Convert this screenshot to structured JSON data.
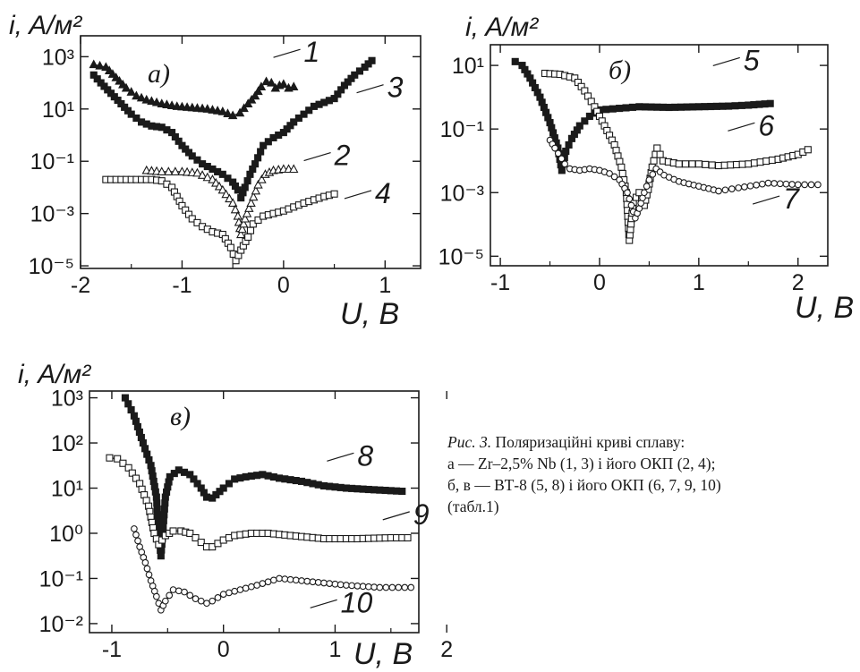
{
  "caption": {
    "figure_label": "Рис. 3.",
    "title": "Поляризаційні криві сплаву:",
    "line_a": "а — Zr–2,5% Nb (1, 3) і його ОКП (2, 4);",
    "line_b": "б, в — ВТ-8 (5, 8) і його ОКП (6, 7, 9, 10)",
    "line_c": "(табл.1)"
  },
  "chart_data": [
    {
      "type": "line",
      "panel": "а)",
      "ylabel": "i, A/м²",
      "xlabel": "U, B",
      "x_ticks": [
        "-2",
        "-1",
        "0",
        "1"
      ],
      "y_ticks": [
        "10³",
        "10¹",
        "10⁻¹",
        "10⁻³",
        "10⁻⁵"
      ],
      "xlim": [
        -2.0,
        1.35
      ],
      "ylim_log10": [
        -5.1,
        3.8
      ],
      "yscale": "log",
      "series": [
        {
          "name": "1",
          "marker": "triangle-filled",
          "points": [
            [
              -1.87,
              2.7
            ],
            [
              -1.75,
              2.6
            ],
            [
              -1.65,
              2.2
            ],
            [
              -1.55,
              1.8
            ],
            [
              -1.45,
              1.5
            ],
            [
              -1.35,
              1.35
            ],
            [
              -1.2,
              1.2
            ],
            [
              -1.05,
              1.1
            ],
            [
              -0.9,
              1.05
            ],
            [
              -0.75,
              1.0
            ],
            [
              -0.6,
              0.9
            ],
            [
              -0.5,
              0.75
            ],
            [
              -0.43,
              0.85
            ],
            [
              -0.35,
              1.2
            ],
            [
              -0.28,
              1.5
            ],
            [
              -0.22,
              1.85
            ],
            [
              -0.17,
              2.05
            ],
            [
              -0.12,
              2.0
            ],
            [
              -0.08,
              1.8
            ],
            [
              -0.04,
              1.9
            ],
            [
              0.0,
              1.95
            ],
            [
              0.05,
              1.8
            ],
            [
              0.1,
              1.85
            ]
          ]
        },
        {
          "name": "3",
          "marker": "square-filled",
          "points": [
            [
              -1.87,
              2.3
            ],
            [
              -1.8,
              2.0
            ],
            [
              -1.7,
              1.6
            ],
            [
              -1.6,
              1.2
            ],
            [
              -1.5,
              0.8
            ],
            [
              -1.4,
              0.5
            ],
            [
              -1.3,
              0.35
            ],
            [
              -1.2,
              0.3
            ],
            [
              -1.1,
              0.1
            ],
            [
              -1.0,
              -0.4
            ],
            [
              -0.9,
              -0.8
            ],
            [
              -0.8,
              -1.1
            ],
            [
              -0.7,
              -1.3
            ],
            [
              -0.6,
              -1.5
            ],
            [
              -0.5,
              -1.8
            ],
            [
              -0.45,
              -2.1
            ],
            [
              -0.42,
              -2.4
            ],
            [
              -0.38,
              -2.0
            ],
            [
              -0.33,
              -1.5
            ],
            [
              -0.28,
              -1.1
            ],
            [
              -0.2,
              -0.4
            ],
            [
              -0.1,
              -0.1
            ],
            [
              0.0,
              0.1
            ],
            [
              0.1,
              0.5
            ],
            [
              0.2,
              0.8
            ],
            [
              0.3,
              1.1
            ],
            [
              0.5,
              1.4
            ],
            [
              0.6,
              1.9
            ],
            [
              0.7,
              2.3
            ],
            [
              0.8,
              2.6
            ],
            [
              0.87,
              2.85
            ]
          ]
        },
        {
          "name": "2",
          "marker": "triangle-open",
          "points": [
            [
              -1.35,
              -1.35
            ],
            [
              -1.2,
              -1.4
            ],
            [
              -1.0,
              -1.4
            ],
            [
              -0.85,
              -1.45
            ],
            [
              -0.7,
              -1.7
            ],
            [
              -0.6,
              -2.1
            ],
            [
              -0.5,
              -2.6
            ],
            [
              -0.45,
              -3.1
            ],
            [
              -0.42,
              -3.8
            ],
            [
              -0.38,
              -3.2
            ],
            [
              -0.32,
              -2.6
            ],
            [
              -0.25,
              -1.9
            ],
            [
              -0.18,
              -1.5
            ],
            [
              -0.1,
              -1.35
            ],
            [
              0.0,
              -1.3
            ],
            [
              0.1,
              -1.3
            ]
          ]
        },
        {
          "name": "4",
          "marker": "square-open",
          "points": [
            [
              -1.75,
              -1.7
            ],
            [
              -1.6,
              -1.7
            ],
            [
              -1.45,
              -1.7
            ],
            [
              -1.3,
              -1.7
            ],
            [
              -1.2,
              -1.75
            ],
            [
              -1.1,
              -2.0
            ],
            [
              -1.0,
              -2.7
            ],
            [
              -0.9,
              -3.2
            ],
            [
              -0.8,
              -3.5
            ],
            [
              -0.7,
              -3.7
            ],
            [
              -0.6,
              -3.8
            ],
            [
              -0.52,
              -4.3
            ],
            [
              -0.47,
              -4.8
            ],
            [
              -0.42,
              -4.4
            ],
            [
              -0.35,
              -3.9
            ],
            [
              -0.3,
              -3.4
            ],
            [
              -0.2,
              -3.1
            ],
            [
              0.0,
              -2.9
            ],
            [
              0.2,
              -2.6
            ],
            [
              0.4,
              -2.35
            ],
            [
              0.5,
              -2.25
            ]
          ]
        }
      ],
      "labels": [
        {
          "text": "1",
          "x": 0.2,
          "y": 2.8
        },
        {
          "text": "3",
          "x": 1.02,
          "y": 1.45
        },
        {
          "text": "2",
          "x": 0.5,
          "y": -1.15
        },
        {
          "text": "4",
          "x": 0.9,
          "y": -2.6
        }
      ]
    },
    {
      "type": "line",
      "panel": "б)",
      "ylabel": "i, A/м²",
      "xlabel": "U, B",
      "x_ticks": [
        "-1",
        "0",
        "1",
        "2"
      ],
      "y_ticks": [
        "10¹",
        "10⁻¹",
        "10⁻³",
        "10⁻⁵"
      ],
      "xlim": [
        -1.1,
        2.3
      ],
      "ylim_log10": [
        -5.3,
        1.65
      ],
      "yscale": "log",
      "series": [
        {
          "name": "5",
          "marker": "square-filled",
          "points": [
            [
              -0.85,
              1.12
            ],
            [
              -0.78,
              1.0
            ],
            [
              -0.7,
              0.6
            ],
            [
              -0.6,
              0.0
            ],
            [
              -0.5,
              -0.8
            ],
            [
              -0.42,
              -1.6
            ],
            [
              -0.38,
              -2.3
            ],
            [
              -0.34,
              -1.7
            ],
            [
              -0.28,
              -1.3
            ],
            [
              -0.2,
              -0.9
            ],
            [
              -0.1,
              -0.6
            ],
            [
              0.0,
              -0.4
            ],
            [
              0.2,
              -0.35
            ],
            [
              0.4,
              -0.3
            ],
            [
              0.7,
              -0.32
            ],
            [
              1.0,
              -0.3
            ],
            [
              1.3,
              -0.28
            ],
            [
              1.5,
              -0.25
            ],
            [
              1.72,
              -0.2
            ]
          ]
        },
        {
          "name": "6",
          "marker": "square-open",
          "points": [
            [
              -0.55,
              0.75
            ],
            [
              -0.4,
              0.72
            ],
            [
              -0.25,
              0.6
            ],
            [
              -0.15,
              0.2
            ],
            [
              -0.05,
              -0.3
            ],
            [
              0.05,
              -0.9
            ],
            [
              0.15,
              -1.5
            ],
            [
              0.22,
              -2.2
            ],
            [
              0.27,
              -3.0
            ],
            [
              0.3,
              -4.5
            ],
            [
              0.34,
              -3.3
            ],
            [
              0.4,
              -3.0
            ],
            [
              0.45,
              -3.4
            ],
            [
              0.49,
              -2.9
            ],
            [
              0.53,
              -2.2
            ],
            [
              0.58,
              -1.6
            ],
            [
              0.64,
              -2.0
            ],
            [
              0.8,
              -2.1
            ],
            [
              1.0,
              -2.1
            ],
            [
              1.2,
              -2.15
            ],
            [
              1.5,
              -2.1
            ],
            [
              1.8,
              -1.95
            ],
            [
              2.0,
              -1.8
            ],
            [
              2.1,
              -1.65
            ]
          ]
        },
        {
          "name": "7",
          "marker": "circle-open",
          "points": [
            [
              -0.5,
              -1.35
            ],
            [
              -0.45,
              -1.6
            ],
            [
              -0.35,
              -2.1
            ],
            [
              -0.3,
              -2.25
            ],
            [
              -0.2,
              -2.3
            ],
            [
              -0.1,
              -2.25
            ],
            [
              0.0,
              -2.3
            ],
            [
              0.1,
              -2.4
            ],
            [
              0.2,
              -2.6
            ],
            [
              0.28,
              -3.0
            ],
            [
              0.32,
              -3.4
            ],
            [
              0.36,
              -3.8
            ],
            [
              0.4,
              -3.5
            ],
            [
              0.45,
              -3.0
            ],
            [
              0.5,
              -2.6
            ],
            [
              0.57,
              -2.25
            ],
            [
              0.65,
              -2.45
            ],
            [
              0.8,
              -2.65
            ],
            [
              1.0,
              -2.8
            ],
            [
              1.2,
              -2.95
            ],
            [
              1.4,
              -2.85
            ],
            [
              1.7,
              -2.7
            ],
            [
              2.0,
              -2.75
            ],
            [
              2.2,
              -2.75
            ]
          ]
        }
      ],
      "labels": [
        {
          "text": "5",
          "x": 1.45,
          "y": 0.85
        },
        {
          "text": "6",
          "x": 1.6,
          "y": -1.2
        },
        {
          "text": "7",
          "x": 1.85,
          "y": -3.5
        }
      ]
    },
    {
      "type": "line",
      "panel": "в)",
      "ylabel": "i, A/м²",
      "xlabel": "U, B",
      "x_ticks": [
        "-1",
        "0",
        "1",
        "2"
      ],
      "y_ticks": [
        "10³",
        "10²",
        "10¹",
        "10⁰",
        "10⁻¹",
        "10⁻²"
      ],
      "xlim": [
        -1.2,
        1.75
      ],
      "ylim_log10": [
        -2.2,
        3.15
      ],
      "yscale": "log",
      "series": [
        {
          "name": "8",
          "marker": "square-filled",
          "points": [
            [
              -0.88,
              3.0
            ],
            [
              -0.8,
              2.6
            ],
            [
              -0.72,
              2.0
            ],
            [
              -0.65,
              1.5
            ],
            [
              -0.6,
              0.8
            ],
            [
              -0.58,
              0.0
            ],
            [
              -0.56,
              -0.5
            ],
            [
              -0.52,
              0.8
            ],
            [
              -0.48,
              1.25
            ],
            [
              -0.4,
              1.4
            ],
            [
              -0.3,
              1.3
            ],
            [
              -0.2,
              1.0
            ],
            [
              -0.15,
              0.8
            ],
            [
              -0.1,
              0.78
            ],
            [
              0.0,
              1.0
            ],
            [
              0.1,
              1.2
            ],
            [
              0.2,
              1.25
            ],
            [
              0.35,
              1.3
            ],
            [
              0.5,
              1.22
            ],
            [
              0.7,
              1.15
            ],
            [
              0.9,
              1.05
            ],
            [
              1.1,
              1.0
            ],
            [
              1.3,
              0.97
            ],
            [
              1.6,
              0.93
            ]
          ]
        },
        {
          "name": "9",
          "marker": "square-open",
          "points": [
            [
              -1.02,
              1.67
            ],
            [
              -0.95,
              1.65
            ],
            [
              -0.85,
              1.45
            ],
            [
              -0.75,
              1.1
            ],
            [
              -0.67,
              0.6
            ],
            [
              -0.62,
              0.0
            ],
            [
              -0.58,
              -0.25
            ],
            [
              -0.52,
              -0.05
            ],
            [
              -0.45,
              0.05
            ],
            [
              -0.38,
              0.05
            ],
            [
              -0.3,
              0.0
            ],
            [
              -0.2,
              -0.2
            ],
            [
              -0.15,
              -0.3
            ],
            [
              -0.1,
              -0.3
            ],
            [
              0.0,
              -0.15
            ],
            [
              0.1,
              -0.05
            ],
            [
              0.25,
              0.0
            ],
            [
              0.4,
              0.0
            ],
            [
              0.6,
              -0.05
            ],
            [
              0.9,
              -0.12
            ],
            [
              1.2,
              -0.12
            ],
            [
              1.5,
              -0.1
            ],
            [
              1.65,
              -0.1
            ]
          ]
        },
        {
          "name": "10",
          "marker": "circle-open",
          "points": [
            [
              -0.8,
              0.1
            ],
            [
              -0.75,
              -0.3
            ],
            [
              -0.7,
              -0.65
            ],
            [
              -0.65,
              -1.05
            ],
            [
              -0.6,
              -1.4
            ],
            [
              -0.56,
              -1.7
            ],
            [
              -0.52,
              -1.5
            ],
            [
              -0.45,
              -1.25
            ],
            [
              -0.35,
              -1.3
            ],
            [
              -0.25,
              -1.45
            ],
            [
              -0.15,
              -1.55
            ],
            [
              -0.1,
              -1.5
            ],
            [
              0.0,
              -1.35
            ],
            [
              0.15,
              -1.25
            ],
            [
              0.3,
              -1.15
            ],
            [
              0.5,
              -1.0
            ],
            [
              0.7,
              -1.05
            ],
            [
              0.9,
              -1.1
            ],
            [
              1.1,
              -1.15
            ],
            [
              1.4,
              -1.2
            ],
            [
              1.68,
              -1.2
            ]
          ]
        }
      ],
      "labels": [
        {
          "text": "8",
          "x": 1.2,
          "y": 1.5
        },
        {
          "text": "9",
          "x": 1.7,
          "y": 0.2
        },
        {
          "text": "10",
          "x": 1.05,
          "y": -1.75
        }
      ]
    }
  ]
}
